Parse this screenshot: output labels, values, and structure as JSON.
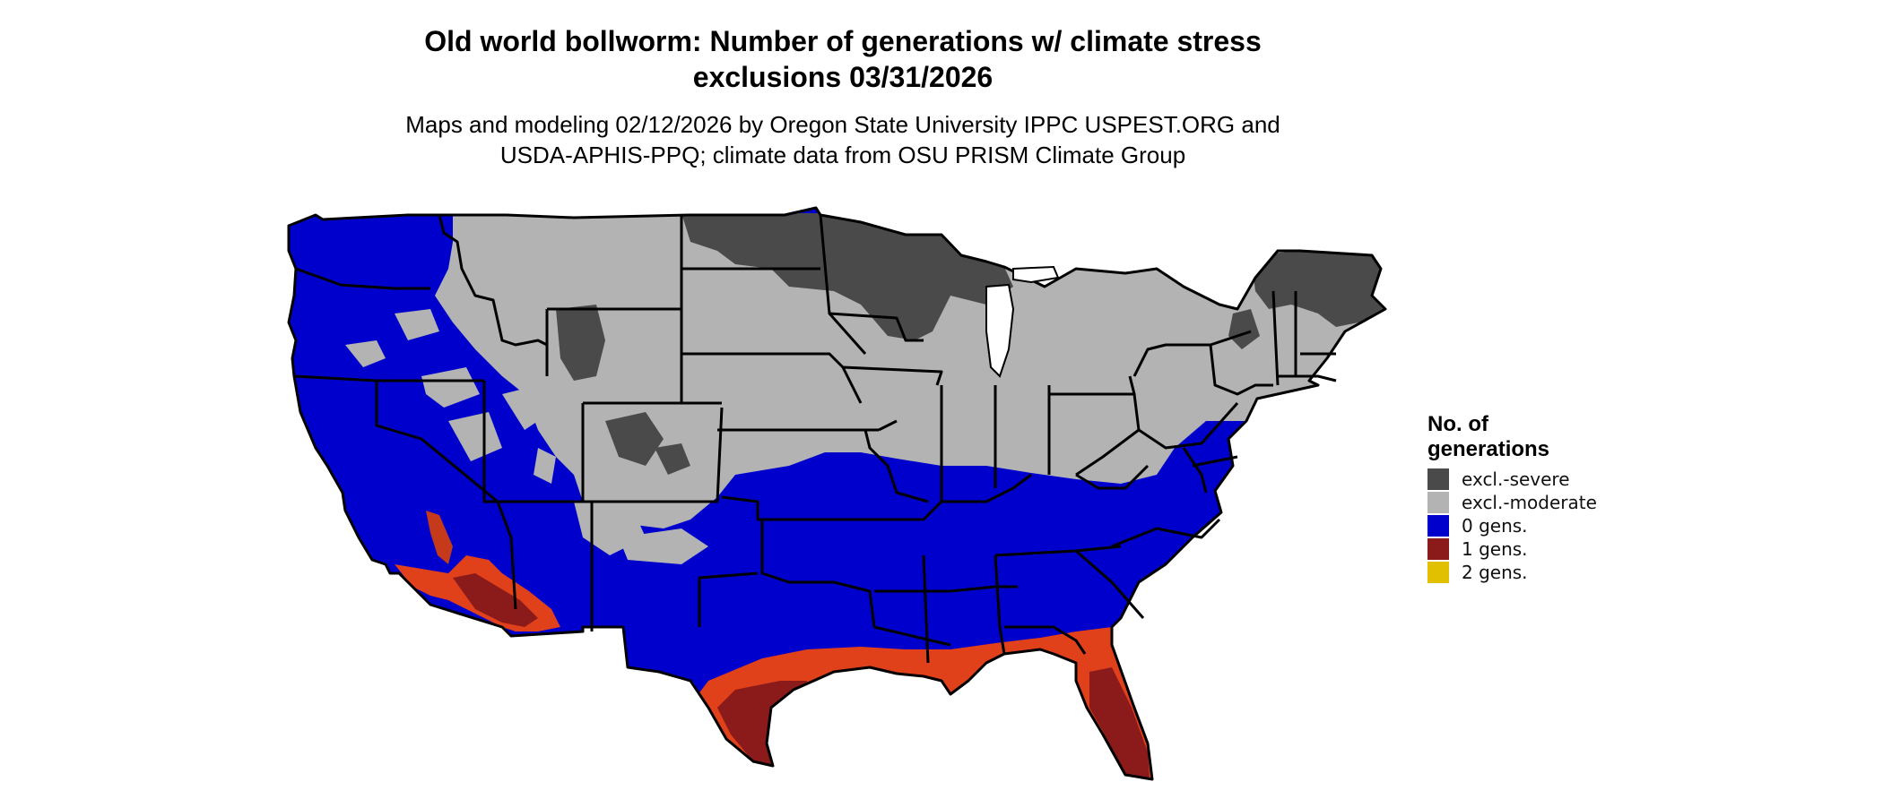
{
  "title": {
    "line1": "Old world bollworm: Number of generations w/ climate stress",
    "line2": "exclusions 03/31/2026"
  },
  "subtitle": {
    "line1": "Maps and modeling 02/12/2026 by Oregon State University IPPC USPEST.ORG and",
    "line2": "USDA-APHIS-PPQ; climate data from OSU PRISM Climate Group"
  },
  "legend": {
    "title_line1": "No. of",
    "title_line2": "generations",
    "items": [
      {
        "label": "excl.-severe",
        "color": "#4a4a4a"
      },
      {
        "label": "excl.-moderate",
        "color": "#b3b3b3"
      },
      {
        "label": "0 gens.",
        "color": "#0000cc"
      },
      {
        "label": "1 gens.",
        "color": "#8b1a1a"
      },
      {
        "label": "2 gens.",
        "color": "#e0c000"
      }
    ]
  },
  "colors": {
    "severe": "#4a4a4a",
    "moderate": "#b3b3b3",
    "zero": "#0000cc",
    "one_dark": "#8b1a1a",
    "one_bright": "#e0401a",
    "two": "#e0c000",
    "border": "#000000"
  }
}
